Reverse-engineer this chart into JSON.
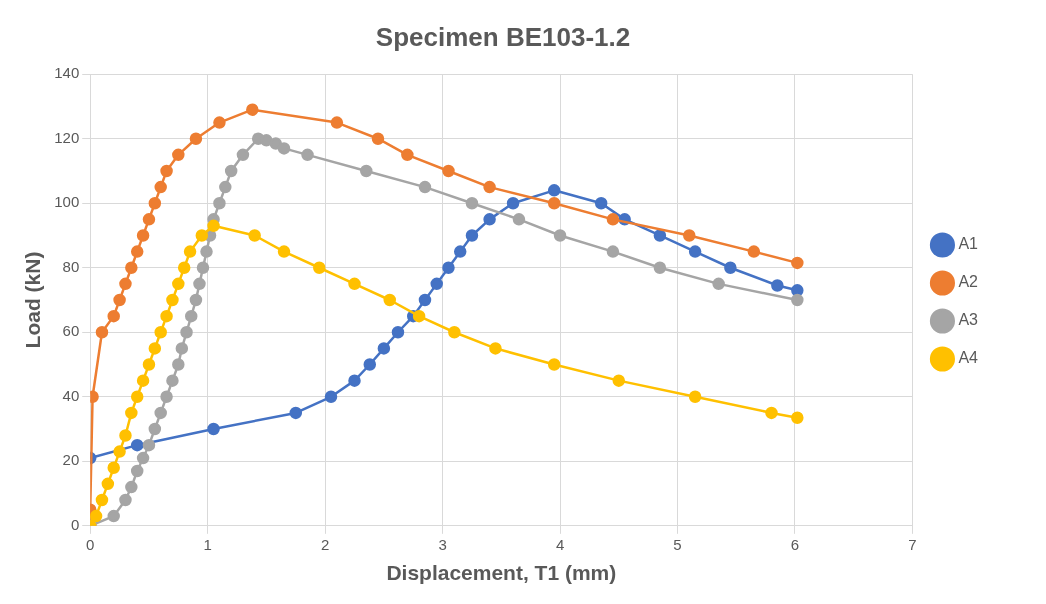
{
  "chart_data": {
    "type": "line",
    "title": "Specimen BE103-1.2",
    "xlabel": "Displacement, T1 (mm)",
    "ylabel": "Load (kN)",
    "xlim": [
      0,
      7
    ],
    "xticks": [
      0,
      1,
      2,
      3,
      4,
      5,
      6,
      7
    ],
    "ylim": [
      0,
      140
    ],
    "yticks": [
      0,
      20,
      40,
      60,
      80,
      100,
      120,
      140
    ],
    "grid": true,
    "legend": "right",
    "marker": "circle",
    "series": [
      {
        "name": "A1",
        "color": "#4472c4",
        "x": [
          0,
          0.4,
          1.05,
          1.75,
          2.05,
          2.25,
          2.38,
          2.5,
          2.62,
          2.75,
          2.85,
          2.95,
          3.05,
          3.15,
          3.25,
          3.4,
          3.6,
          3.95,
          4.35,
          4.55,
          4.85,
          5.15,
          5.45,
          5.85,
          6.02
        ],
        "values": [
          21,
          25,
          30,
          35,
          40,
          45,
          50,
          55,
          60,
          65,
          70,
          75,
          80,
          85,
          90,
          95,
          100,
          104,
          100,
          95,
          90,
          85,
          80,
          74.5,
          73
        ]
      },
      {
        "name": "A2",
        "color": "#ed7d31",
        "x": [
          0,
          0,
          0.02,
          0.1,
          0.2,
          0.25,
          0.3,
          0.35,
          0.4,
          0.45,
          0.5,
          0.55,
          0.6,
          0.65,
          0.75,
          0.9,
          1.1,
          1.38,
          2.1,
          2.45,
          2.7,
          3.05,
          3.4,
          3.95,
          4.45,
          5.1,
          5.65,
          6.02
        ],
        "values": [
          0,
          5,
          40,
          60,
          65,
          70,
          75,
          80,
          85,
          90,
          95,
          100,
          105,
          110,
          115,
          120,
          125,
          129,
          125,
          120,
          115,
          110,
          105,
          100,
          95,
          90,
          85,
          81.5
        ]
      },
      {
        "name": "A3",
        "color": "#a5a5a5",
        "x": [
          0,
          0.2,
          0.3,
          0.35,
          0.4,
          0.45,
          0.5,
          0.55,
          0.6,
          0.65,
          0.7,
          0.75,
          0.78,
          0.82,
          0.86,
          0.9,
          0.93,
          0.96,
          0.99,
          1.02,
          1.05,
          1.1,
          1.15,
          1.2,
          1.3,
          1.43,
          1.5,
          1.58,
          1.65,
          1.85,
          2.35,
          2.85,
          3.25,
          3.65,
          4.0,
          4.45,
          4.85,
          5.35,
          6.02
        ],
        "values": [
          0,
          3,
          8,
          12,
          17,
          21,
          25,
          30,
          35,
          40,
          45,
          50,
          55,
          60,
          65,
          70,
          75,
          80,
          85,
          90,
          95,
          100,
          105,
          110,
          115,
          120,
          119.5,
          118.5,
          117,
          115,
          110,
          105,
          100,
          95,
          90,
          85,
          80,
          75,
          70
        ]
      },
      {
        "name": "A4",
        "color": "#ffc000",
        "x": [
          0,
          0.05,
          0.1,
          0.15,
          0.2,
          0.25,
          0.3,
          0.35,
          0.4,
          0.45,
          0.5,
          0.55,
          0.6,
          0.65,
          0.7,
          0.75,
          0.8,
          0.85,
          0.95,
          1.05,
          1.4,
          1.65,
          1.95,
          2.25,
          2.55,
          2.8,
          3.1,
          3.45,
          3.95,
          4.5,
          5.15,
          5.8,
          6.02
        ],
        "values": [
          0,
          3,
          8,
          13,
          18,
          23,
          28,
          35,
          40,
          45,
          50,
          55,
          60,
          65,
          70,
          75,
          80,
          85,
          90,
          93,
          90,
          85,
          80,
          75,
          70,
          65,
          60,
          55,
          50,
          45,
          40,
          35,
          33.5
        ]
      }
    ]
  }
}
